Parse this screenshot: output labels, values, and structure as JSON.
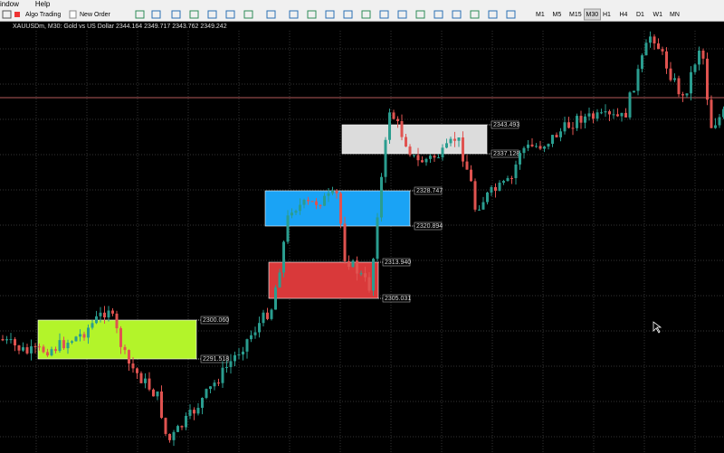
{
  "menu": [
    "indow",
    "Help"
  ],
  "toolbar": {
    "algo_trading": "Algo Trading",
    "new_order": "New Order",
    "timeframes": [
      "M1",
      "M5",
      "M15",
      "M30",
      "H1",
      "H4",
      "D1",
      "W1",
      "MN"
    ],
    "active_timeframe": "M30"
  },
  "chart": {
    "header": "XAUUSDm, M30:  Gold vs US Dollar  2344.164 2349.717 2343.762 2349.242",
    "zones": [
      {
        "name": "grey",
        "color": "#dcdcdc",
        "top_label": "2343.493",
        "bottom_label": "2337.128"
      },
      {
        "name": "blue",
        "color": "#1aa3f5",
        "top_label": "2328.747",
        "bottom_label": "2320.894"
      },
      {
        "name": "red",
        "color": "#d9393a",
        "top_label": "2313.940",
        "bottom_label": "2305.031"
      },
      {
        "name": "green",
        "color": "#b3f42a",
        "top_label": "2300.060",
        "bottom_label": "2291.518"
      }
    ]
  }
}
